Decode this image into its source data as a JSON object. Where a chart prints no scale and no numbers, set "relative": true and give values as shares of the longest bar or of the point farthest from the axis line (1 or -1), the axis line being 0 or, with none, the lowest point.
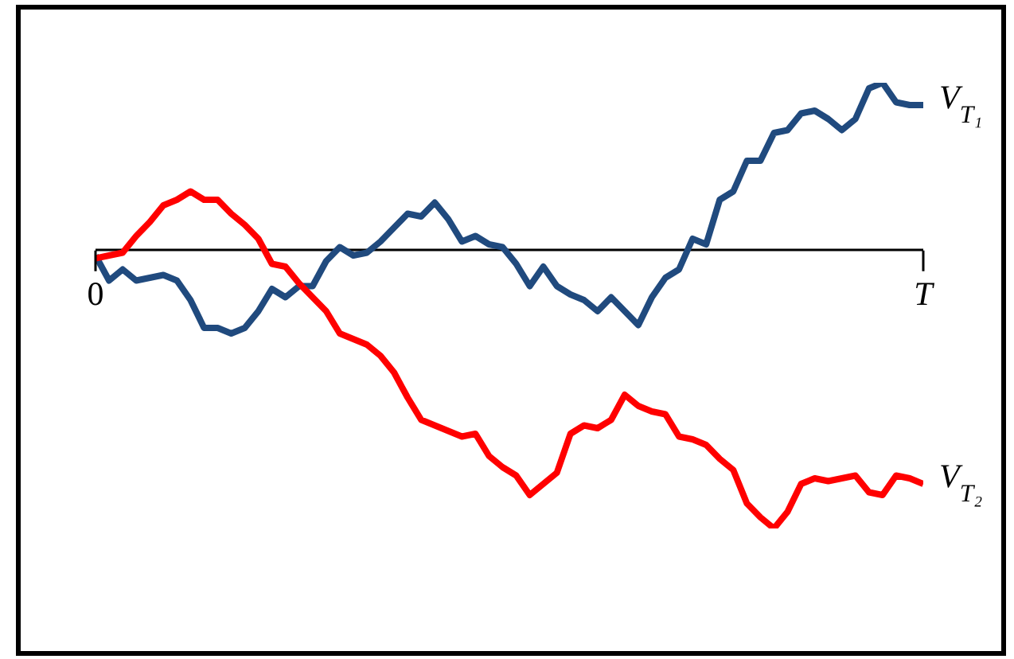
{
  "chart_data": {
    "type": "line",
    "relative": true,
    "categories": [
      "0",
      null,
      null,
      null,
      null,
      null,
      null,
      null,
      null,
      null,
      null,
      null,
      null,
      null,
      null,
      null,
      null,
      null,
      null,
      null,
      null,
      null,
      null,
      null,
      null,
      null,
      null,
      null,
      null,
      null,
      null,
      null,
      null,
      null,
      null,
      null,
      null,
      null,
      null,
      null,
      null,
      null,
      null,
      null,
      null,
      null,
      null,
      null,
      null,
      null,
      null,
      null,
      null,
      null,
      null,
      null,
      null,
      null,
      null,
      null,
      null,
      "T"
    ],
    "series": [
      {
        "name": "V$_{T₁}$",
        "color": "#204a7e",
        "values": [
          -0.02,
          -0.11,
          -0.07,
          -0.11,
          -0.1,
          -0.09,
          -0.11,
          -0.18,
          -0.28,
          -0.28,
          -0.3,
          -0.28,
          -0.22,
          -0.14,
          -0.17,
          -0.13,
          -0.13,
          -0.04,
          0.01,
          -0.02,
          -0.01,
          0.03,
          0.08,
          0.13,
          0.12,
          0.17,
          0.11,
          0.03,
          0.05,
          0.02,
          0.01,
          -0.05,
          -0.13,
          -0.06,
          -0.13,
          -0.16,
          -0.18,
          -0.22,
          -0.17,
          -0.22,
          -0.27,
          -0.17,
          -0.1,
          -0.07,
          0.04,
          0.02,
          0.18,
          0.21,
          0.32,
          0.32,
          0.42,
          0.43,
          0.49,
          0.5,
          0.47,
          0.43,
          0.47,
          0.58,
          0.6,
          0.53,
          0.52,
          0.52
        ]
      },
      {
        "name": "V$_{T₂}$",
        "color": "#ff0000",
        "values": [
          -0.03,
          -0.02,
          -0.01,
          0.05,
          0.1,
          0.16,
          0.18,
          0.21,
          0.18,
          0.18,
          0.13,
          0.09,
          0.04,
          -0.05,
          -0.06,
          -0.12,
          -0.17,
          -0.22,
          -0.3,
          -0.32,
          -0.34,
          -0.38,
          -0.44,
          -0.53,
          -0.61,
          -0.63,
          -0.65,
          -0.67,
          -0.66,
          -0.74,
          -0.78,
          -0.81,
          -0.88,
          -0.84,
          -0.8,
          -0.66,
          -0.63,
          -0.64,
          -0.61,
          -0.52,
          -0.56,
          -0.58,
          -0.59,
          -0.67,
          -0.68,
          -0.7,
          -0.75,
          -0.79,
          -0.91,
          -0.96,
          -1,
          -0.94,
          -0.84,
          -0.82,
          -0.83,
          -0.82,
          -0.81,
          -0.87,
          -0.88,
          -0.81,
          -0.82,
          -0.84
        ]
      }
    ]
  }
}
